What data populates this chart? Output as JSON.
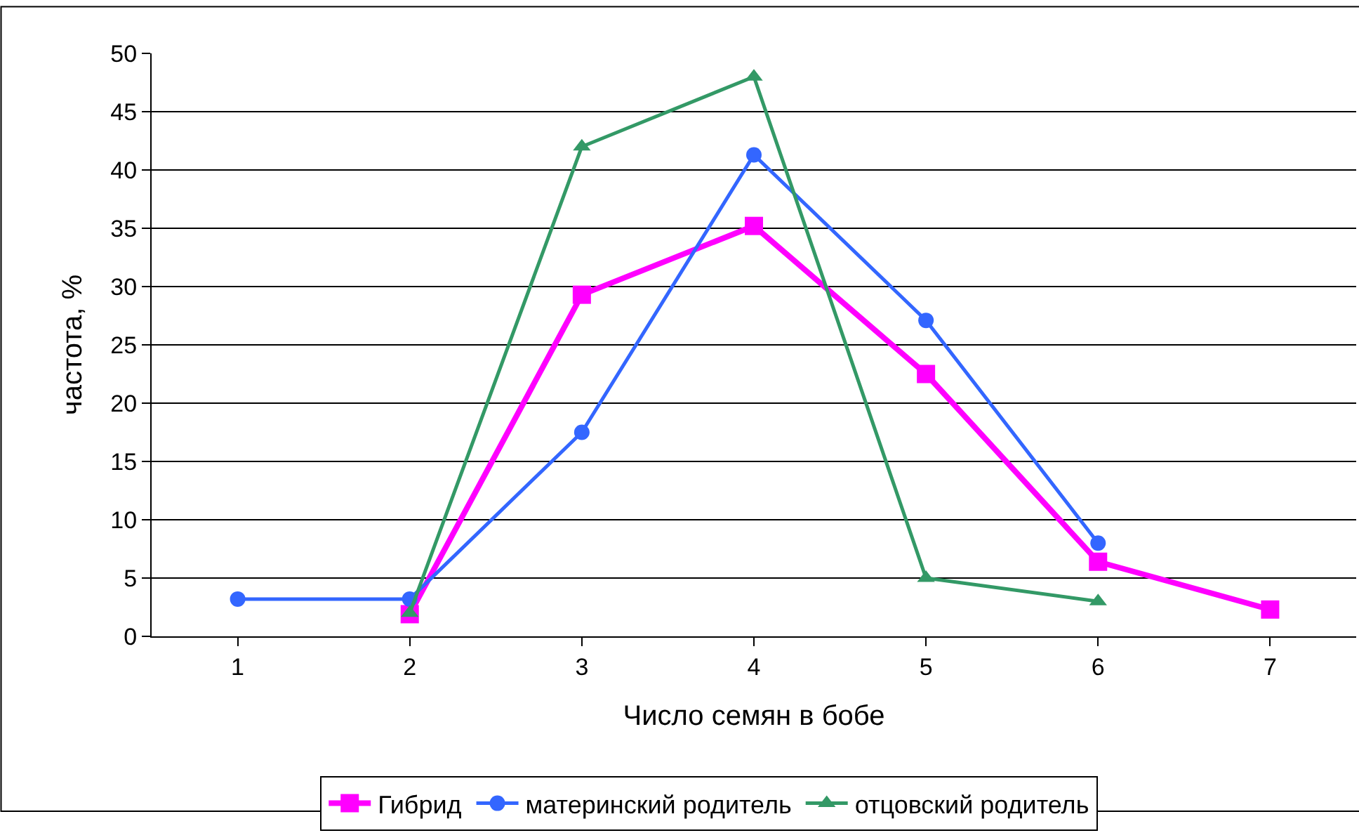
{
  "chart_data": {
    "type": "line",
    "xlabel": "Число семян в бобе",
    "ylabel": "частота, %",
    "categories": [
      "1",
      "2",
      "3",
      "4",
      "5",
      "6",
      "7"
    ],
    "ylim": [
      0,
      50
    ],
    "yticks": [
      0,
      5,
      10,
      15,
      20,
      25,
      30,
      35,
      40,
      45,
      50
    ],
    "grid": "y",
    "legend": "bottom",
    "series": [
      {
        "name": "Гибрид",
        "color": "#ff00ff",
        "marker": "square",
        "values": [
          null,
          1.9,
          29.3,
          35.2,
          22.5,
          6.4,
          2.3
        ]
      },
      {
        "name": "материнский родитель",
        "color": "#3366ff",
        "marker": "circle",
        "values": [
          3.2,
          3.2,
          17.5,
          41.3,
          27.1,
          8.0,
          null
        ]
      },
      {
        "name": "отцовский родитель",
        "color": "#339966",
        "marker": "triangle",
        "values": [
          null,
          2.0,
          42,
          48,
          5,
          3,
          null
        ]
      }
    ]
  }
}
